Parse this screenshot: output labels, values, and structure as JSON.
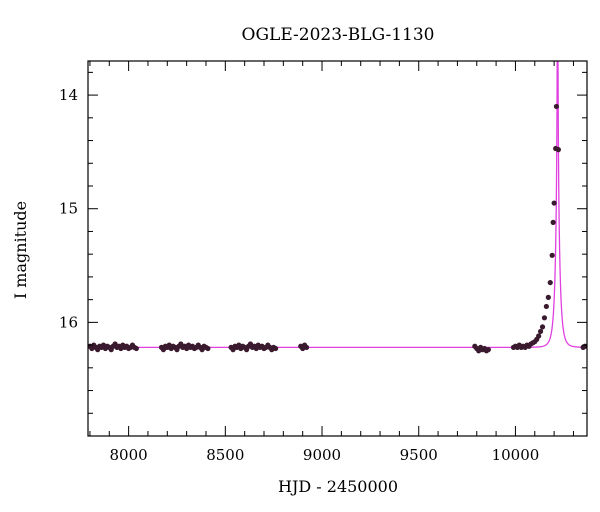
{
  "chart_data": {
    "type": "scatter",
    "title": "OGLE-2023-BLG-1130",
    "xlabel": "HJD - 2450000",
    "ylabel": "I magnitude",
    "xlim": [
      7790,
      10370
    ],
    "ylim": [
      17.0,
      13.7
    ],
    "y_inverted": true,
    "x_ticks": [
      8000,
      8500,
      9000,
      9500,
      10000
    ],
    "y_ticks": [
      14,
      15,
      16
    ],
    "grid": false,
    "colors": {
      "points": "#3a1a2e",
      "model": "#e040e0"
    },
    "baseline_mag": 16.22,
    "model": {
      "name": "",
      "t0": 10218,
      "u0": 0.025,
      "tE": 21,
      "fs_fraction": 1.0,
      "baseline_mag": 16.22
    },
    "observations": [
      {
        "hjd": 7800,
        "mag": 16.21
      },
      {
        "hjd": 7810,
        "mag": 16.23
      },
      {
        "hjd": 7820,
        "mag": 16.2
      },
      {
        "hjd": 7830,
        "mag": 16.22
      },
      {
        "hjd": 7840,
        "mag": 16.24
      },
      {
        "hjd": 7850,
        "mag": 16.21
      },
      {
        "hjd": 7860,
        "mag": 16.22
      },
      {
        "hjd": 7870,
        "mag": 16.2
      },
      {
        "hjd": 7880,
        "mag": 16.23
      },
      {
        "hjd": 7890,
        "mag": 16.21
      },
      {
        "hjd": 7900,
        "mag": 16.22
      },
      {
        "hjd": 7910,
        "mag": 16.24
      },
      {
        "hjd": 7920,
        "mag": 16.21
      },
      {
        "hjd": 7930,
        "mag": 16.19
      },
      {
        "hjd": 7940,
        "mag": 16.22
      },
      {
        "hjd": 7950,
        "mag": 16.21
      },
      {
        "hjd": 7960,
        "mag": 16.23
      },
      {
        "hjd": 7970,
        "mag": 16.2
      },
      {
        "hjd": 7980,
        "mag": 16.22
      },
      {
        "hjd": 7990,
        "mag": 16.21
      },
      {
        "hjd": 8000,
        "mag": 16.23
      },
      {
        "hjd": 8010,
        "mag": 16.22
      },
      {
        "hjd": 8020,
        "mag": 16.2
      },
      {
        "hjd": 8030,
        "mag": 16.22
      },
      {
        "hjd": 8040,
        "mag": 16.23
      },
      {
        "hjd": 8170,
        "mag": 16.22
      },
      {
        "hjd": 8180,
        "mag": 16.24
      },
      {
        "hjd": 8190,
        "mag": 16.21
      },
      {
        "hjd": 8200,
        "mag": 16.22
      },
      {
        "hjd": 8210,
        "mag": 16.2
      },
      {
        "hjd": 8220,
        "mag": 16.23
      },
      {
        "hjd": 8230,
        "mag": 16.21
      },
      {
        "hjd": 8240,
        "mag": 16.22
      },
      {
        "hjd": 8250,
        "mag": 16.24
      },
      {
        "hjd": 8260,
        "mag": 16.21
      },
      {
        "hjd": 8270,
        "mag": 16.19
      },
      {
        "hjd": 8280,
        "mag": 16.22
      },
      {
        "hjd": 8290,
        "mag": 16.21
      },
      {
        "hjd": 8300,
        "mag": 16.23
      },
      {
        "hjd": 8310,
        "mag": 16.2
      },
      {
        "hjd": 8320,
        "mag": 16.22
      },
      {
        "hjd": 8330,
        "mag": 16.21
      },
      {
        "hjd": 8340,
        "mag": 16.23
      },
      {
        "hjd": 8350,
        "mag": 16.22
      },
      {
        "hjd": 8360,
        "mag": 16.2
      },
      {
        "hjd": 8370,
        "mag": 16.22
      },
      {
        "hjd": 8380,
        "mag": 16.24
      },
      {
        "hjd": 8390,
        "mag": 16.21
      },
      {
        "hjd": 8400,
        "mag": 16.22
      },
      {
        "hjd": 8410,
        "mag": 16.23
      },
      {
        "hjd": 8530,
        "mag": 16.22
      },
      {
        "hjd": 8540,
        "mag": 16.24
      },
      {
        "hjd": 8550,
        "mag": 16.21
      },
      {
        "hjd": 8560,
        "mag": 16.22
      },
      {
        "hjd": 8570,
        "mag": 16.2
      },
      {
        "hjd": 8580,
        "mag": 16.23
      },
      {
        "hjd": 8590,
        "mag": 16.21
      },
      {
        "hjd": 8600,
        "mag": 16.22
      },
      {
        "hjd": 8610,
        "mag": 16.24
      },
      {
        "hjd": 8620,
        "mag": 16.21
      },
      {
        "hjd": 8630,
        "mag": 16.19
      },
      {
        "hjd": 8640,
        "mag": 16.22
      },
      {
        "hjd": 8650,
        "mag": 16.21
      },
      {
        "hjd": 8660,
        "mag": 16.23
      },
      {
        "hjd": 8670,
        "mag": 16.2
      },
      {
        "hjd": 8680,
        "mag": 16.22
      },
      {
        "hjd": 8690,
        "mag": 16.21
      },
      {
        "hjd": 8700,
        "mag": 16.23
      },
      {
        "hjd": 8710,
        "mag": 16.22
      },
      {
        "hjd": 8720,
        "mag": 16.2
      },
      {
        "hjd": 8730,
        "mag": 16.22
      },
      {
        "hjd": 8740,
        "mag": 16.24
      },
      {
        "hjd": 8750,
        "mag": 16.22
      },
      {
        "hjd": 8760,
        "mag": 16.23
      },
      {
        "hjd": 8890,
        "mag": 16.21
      },
      {
        "hjd": 8900,
        "mag": 16.23
      },
      {
        "hjd": 8910,
        "mag": 16.2
      },
      {
        "hjd": 8920,
        "mag": 16.22
      },
      {
        "hjd": 9790,
        "mag": 16.21
      },
      {
        "hjd": 9800,
        "mag": 16.23
      },
      {
        "hjd": 9810,
        "mag": 16.25
      },
      {
        "hjd": 9820,
        "mag": 16.22
      },
      {
        "hjd": 9830,
        "mag": 16.24
      },
      {
        "hjd": 9840,
        "mag": 16.23
      },
      {
        "hjd": 9850,
        "mag": 16.25
      },
      {
        "hjd": 9860,
        "mag": 16.24
      },
      {
        "hjd": 9990,
        "mag": 16.22
      },
      {
        "hjd": 10000,
        "mag": 16.21
      },
      {
        "hjd": 10010,
        "mag": 16.22
      },
      {
        "hjd": 10020,
        "mag": 16.2
      },
      {
        "hjd": 10030,
        "mag": 16.22
      },
      {
        "hjd": 10040,
        "mag": 16.21
      },
      {
        "hjd": 10050,
        "mag": 16.22
      },
      {
        "hjd": 10060,
        "mag": 16.2
      },
      {
        "hjd": 10070,
        "mag": 16.21
      },
      {
        "hjd": 10080,
        "mag": 16.19
      },
      {
        "hjd": 10090,
        "mag": 16.18
      },
      {
        "hjd": 10100,
        "mag": 16.17
      },
      {
        "hjd": 10110,
        "mag": 16.15
      },
      {
        "hjd": 10120,
        "mag": 16.12
      },
      {
        "hjd": 10130,
        "mag": 16.08
      },
      {
        "hjd": 10140,
        "mag": 16.04
      },
      {
        "hjd": 10150,
        "mag": 15.96
      },
      {
        "hjd": 10160,
        "mag": 15.86
      },
      {
        "hjd": 10170,
        "mag": 15.78
      },
      {
        "hjd": 10180,
        "mag": 15.65
      },
      {
        "hjd": 10190,
        "mag": 15.41
      },
      {
        "hjd": 10195,
        "mag": 15.12
      },
      {
        "hjd": 10200,
        "mag": 14.95
      },
      {
        "hjd": 10208,
        "mag": 14.47
      },
      {
        "hjd": 10212,
        "mag": 14.1
      },
      {
        "hjd": 10222,
        "mag": 14.48
      },
      {
        "hjd": 10350,
        "mag": 16.22
      },
      {
        "hjd": 10360,
        "mag": 16.21
      }
    ]
  }
}
